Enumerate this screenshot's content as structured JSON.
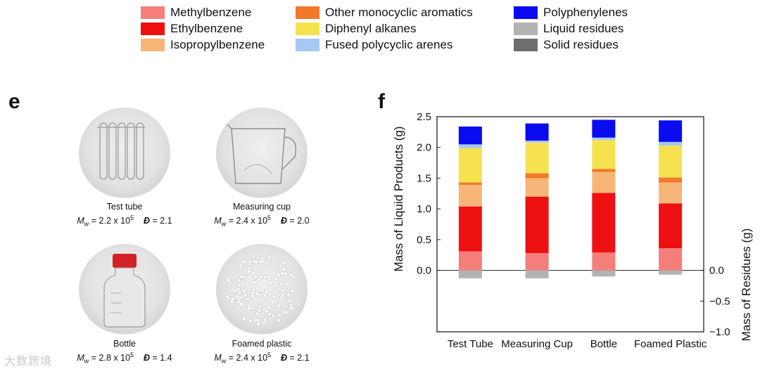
{
  "legend": [
    {
      "label": "Methylbenzene",
      "color": "#f47f7a"
    },
    {
      "label": "Ethylbenzene",
      "color": "#ee1111"
    },
    {
      "label": "Isopropylbenzene",
      "color": "#f8b578"
    },
    {
      "label": "Other monocyclic aromatics",
      "color": "#f07a2a"
    },
    {
      "label": "Diphenyl alkanes",
      "color": "#f6e24f"
    },
    {
      "label": "Fused polycyclic arenes",
      "color": "#a8c8f4"
    },
    {
      "label": "Polyphenylenes",
      "color": "#0a0cf0"
    },
    {
      "label": "Liquid residues",
      "color": "#b3b3b3"
    },
    {
      "label": "Solid residues",
      "color": "#6e6e6e"
    }
  ],
  "panel_e": {
    "letter": "e",
    "items": [
      {
        "name": "Test tube",
        "mw_label": "M",
        "mw_sub": "w",
        "mw_value": " = 2.2 x 10",
        "mw_exp": "5",
        "d_label": "Đ",
        "d_value": " = 2.1"
      },
      {
        "name": "Measuring cup",
        "mw_label": "M",
        "mw_sub": "w",
        "mw_value": " = 2.4 x 10",
        "mw_exp": "5",
        "d_label": "Đ",
        "d_value": " = 2.0"
      },
      {
        "name": "Bottle",
        "mw_label": "M",
        "mw_sub": "w",
        "mw_value": " = 2.8 x 10",
        "mw_exp": "5",
        "d_label": "Đ",
        "d_value": " = 1.4"
      },
      {
        "name": "Foamed plastic",
        "mw_label": "M",
        "mw_sub": "w",
        "mw_value": " = 2.4 x 10",
        "mw_exp": "5",
        "d_label": "Đ",
        "d_value": " = 2.1"
      }
    ]
  },
  "panel_f": {
    "letter": "f"
  },
  "chart_data": {
    "type": "bar",
    "stacked": true,
    "categories": [
      "Test Tube",
      "Measuring Cup",
      "Bottle",
      "Foamed Plastic"
    ],
    "ylabel": "Mass of Liquid Products (g)",
    "y2label": "Mass of Residues (g)",
    "ylim": [
      -1.0,
      2.5
    ],
    "yticks": [
      "2.5",
      "2.0",
      "1.5",
      "1.0",
      "0.5",
      "0.0"
    ],
    "y2ticks": [
      "0.0",
      "−0.5",
      "−1.0"
    ],
    "series": [
      {
        "name": "Methylbenzene",
        "color": "#f47f7a",
        "values": [
          0.31,
          0.28,
          0.29,
          0.36
        ]
      },
      {
        "name": "Ethylbenzene",
        "color": "#ee1111",
        "values": [
          0.73,
          0.92,
          0.97,
          0.73
        ]
      },
      {
        "name": "Isopropylbenzene",
        "color": "#f8b578",
        "values": [
          0.35,
          0.3,
          0.34,
          0.34
        ]
      },
      {
        "name": "Other monocyclic aromatics",
        "color": "#f07a2a",
        "values": [
          0.04,
          0.08,
          0.05,
          0.08
        ]
      },
      {
        "name": "Diphenyl alkanes",
        "color": "#f6e24f",
        "values": [
          0.56,
          0.5,
          0.47,
          0.52
        ]
      },
      {
        "name": "Fused polycyclic arenes",
        "color": "#a8c8f4",
        "values": [
          0.06,
          0.03,
          0.04,
          0.06
        ]
      },
      {
        "name": "Polyphenylenes",
        "color": "#0a0cf0",
        "values": [
          0.29,
          0.28,
          0.29,
          0.35
        ]
      }
    ],
    "residues": [
      {
        "name": "Liquid residues",
        "color": "#b3b3b3",
        "values": [
          -0.13,
          -0.13,
          -0.1,
          -0.07
        ]
      },
      {
        "name": "Solid residues",
        "color": "#6e6e6e",
        "values": [
          0,
          0,
          0,
          0
        ]
      }
    ]
  },
  "watermark": "大数跨境"
}
